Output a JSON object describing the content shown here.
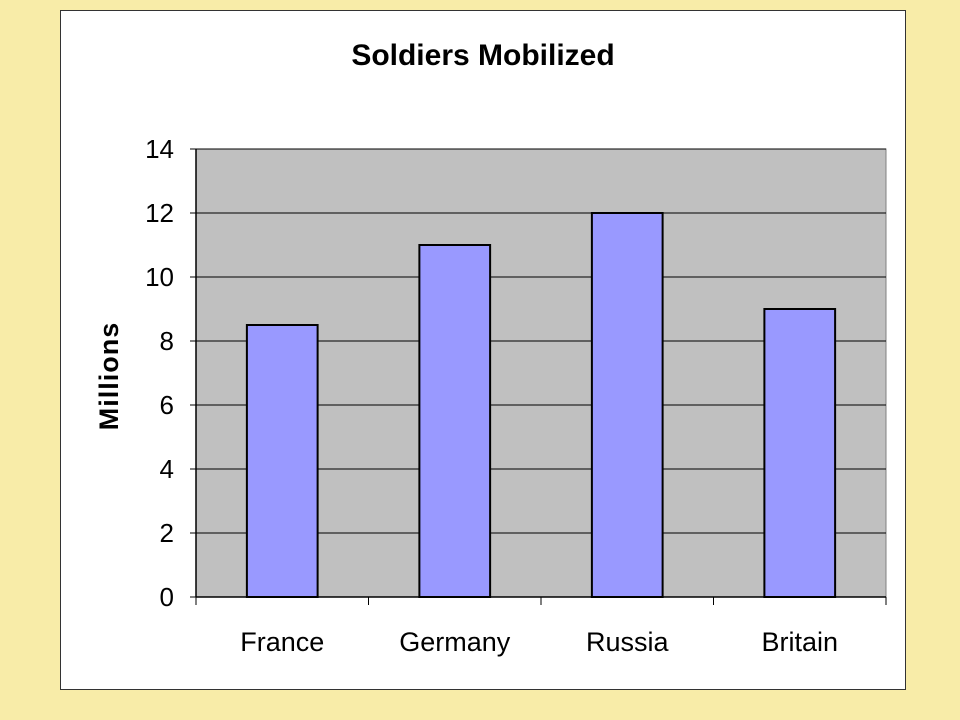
{
  "chart_data": {
    "type": "bar",
    "title": "Soldiers Mobilized",
    "xlabel": "",
    "ylabel": "Millions",
    "categories": [
      "France",
      "Germany",
      "Russia",
      "Britain"
    ],
    "series": [
      {
        "values": [
          8.5,
          11,
          12,
          9
        ]
      }
    ],
    "ylim": [
      0,
      14
    ],
    "yticks": [
      "0",
      "2",
      "4",
      "6",
      "8",
      "10",
      "12",
      "14"
    ],
    "grid": true,
    "legend": "none",
    "colors": {
      "bar_fill": "#9999ff",
      "bar_stroke": "#000000",
      "plot_background": "#c0c0c0",
      "page_background": "#f8eca8",
      "frame_background": "#ffffff"
    }
  }
}
